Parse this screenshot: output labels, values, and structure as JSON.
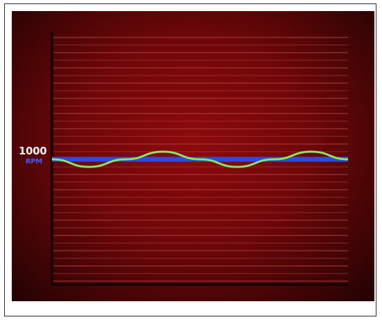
{
  "chart_data": {
    "type": "line",
    "reference_label": "1000",
    "reference_unit": "RPM",
    "reference_value": 1000,
    "series": [
      {
        "color": "#2f4bd9",
        "style": "flat",
        "values": [
          1000,
          1000,
          1000,
          1000,
          1000,
          1000,
          1000,
          1000,
          1000
        ]
      },
      {
        "color": "#8ee26a",
        "style": "oscillating",
        "values": [
          1000,
          975,
          1000,
          1025,
          1000,
          975,
          1000,
          1025,
          1000
        ]
      }
    ],
    "grid": "horizontal",
    "colors": {
      "background": "#7a0709",
      "gridline": "#a83a3d",
      "axis": "#1c0202"
    }
  }
}
